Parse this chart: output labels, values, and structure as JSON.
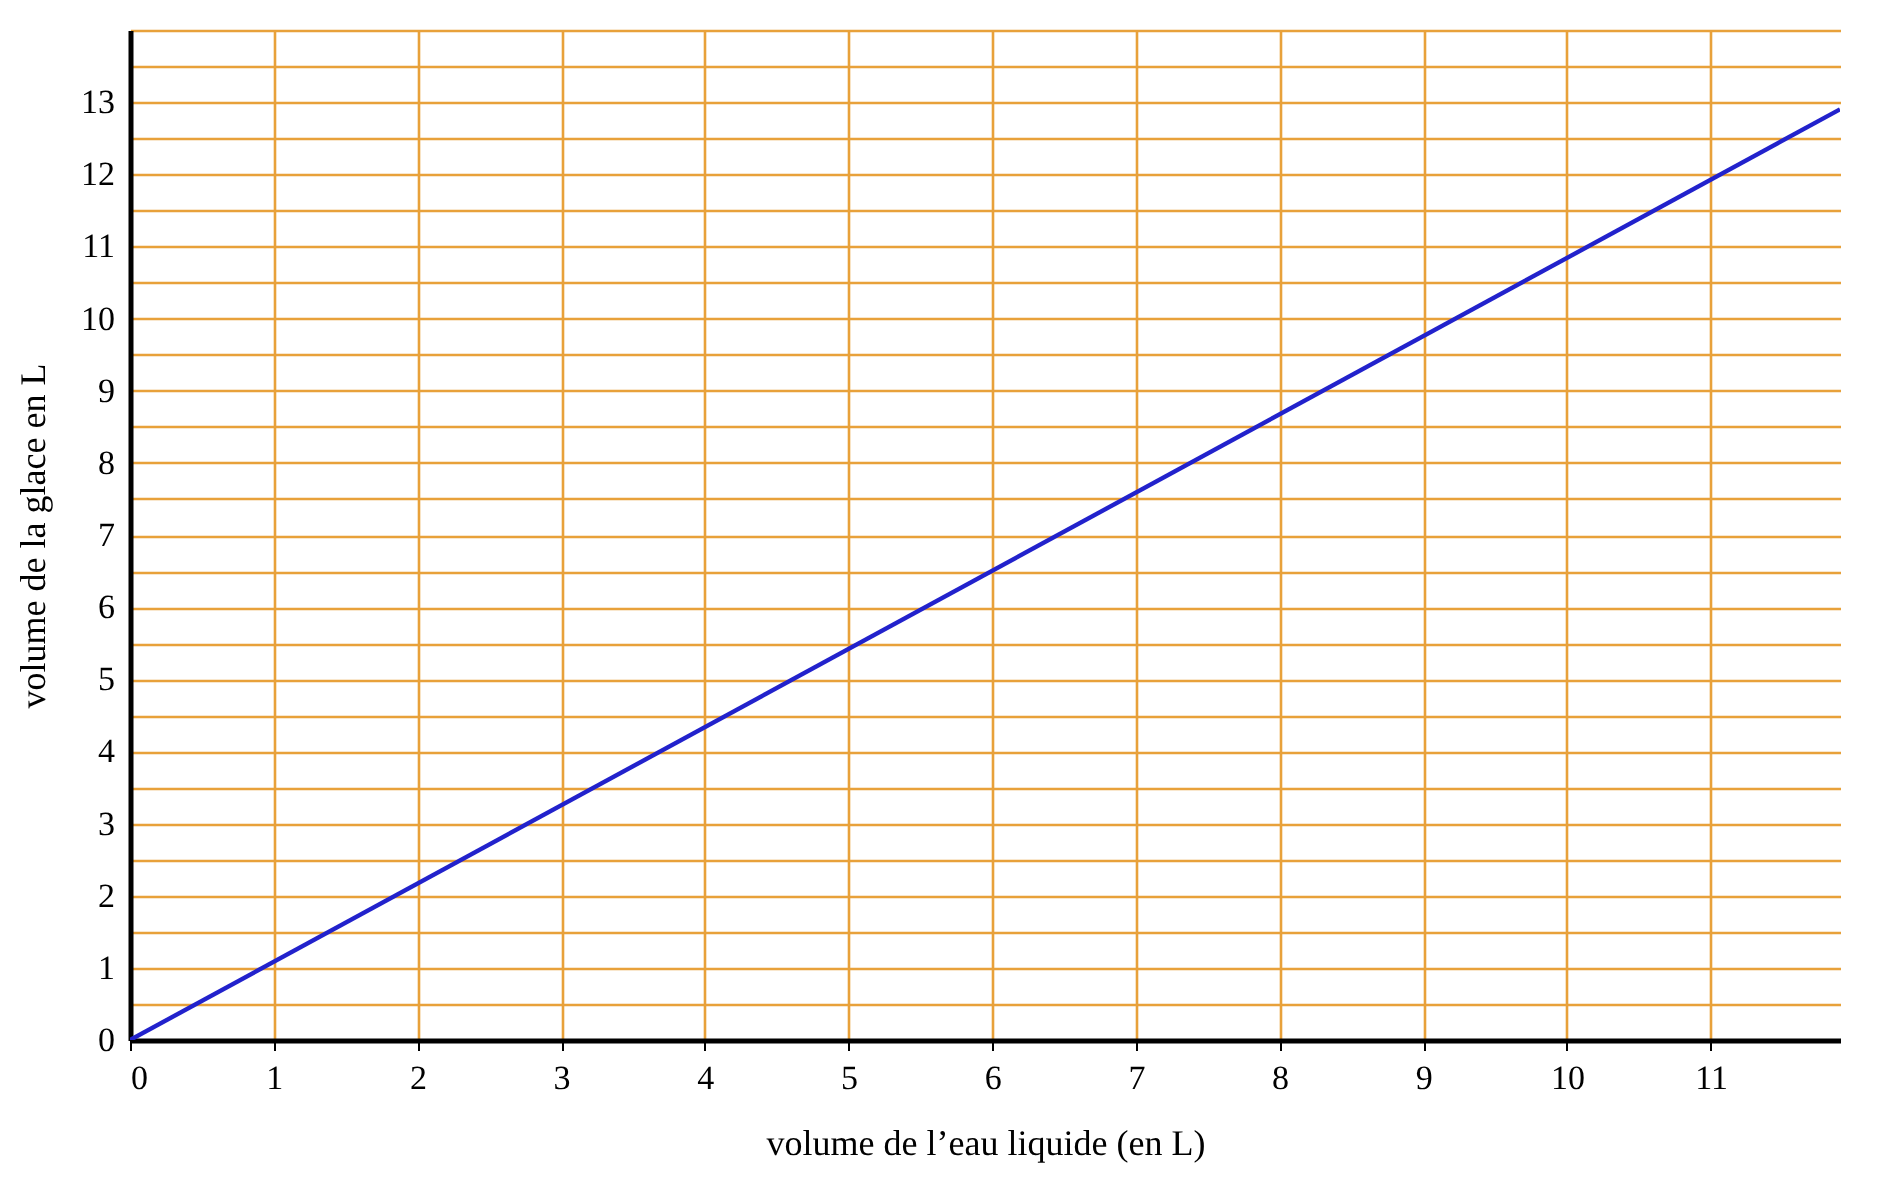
{
  "chart_data": {
    "type": "line",
    "xlabel": "volume de l’eau liquide (en L)",
    "ylabel": "volume de la glace en L",
    "x": [
      0,
      11.9
    ],
    "series": [
      {
        "color": "#2222cc",
        "values": [
          0,
          12.9
        ]
      }
    ],
    "xlim": [
      0,
      11.9
    ],
    "ylim": [
      0,
      14
    ],
    "xticks": [
      0,
      1,
      2,
      3,
      4,
      5,
      6,
      7,
      8,
      9,
      10,
      11
    ],
    "yticks": [
      0,
      {
        "value": 0.5,
        "label": null
      },
      1,
      {
        "value": 1.5,
        "label": null
      },
      2,
      {
        "value": 2.5,
        "label": null
      },
      3,
      {
        "value": 3.5,
        "label": null
      },
      4,
      {
        "value": 4.5,
        "label": null
      },
      5,
      {
        "value": 5.5,
        "label": null
      },
      6,
      {
        "value": 6.5,
        "label": null
      },
      7,
      {
        "value": 7.5,
        "label": null
      },
      8,
      {
        "value": 8.5,
        "label": null
      },
      9,
      {
        "value": 9.5,
        "label": null
      },
      10,
      {
        "value": 10.5,
        "label": null
      },
      11,
      {
        "value": 11.5,
        "label": null
      },
      12,
      {
        "value": 12.5,
        "label": null
      },
      13,
      {
        "value": 13.5,
        "label": null
      },
      {
        "value": 14,
        "label": null
      }
    ],
    "grid": true,
    "marker": "none",
    "line_style": "solid"
  }
}
